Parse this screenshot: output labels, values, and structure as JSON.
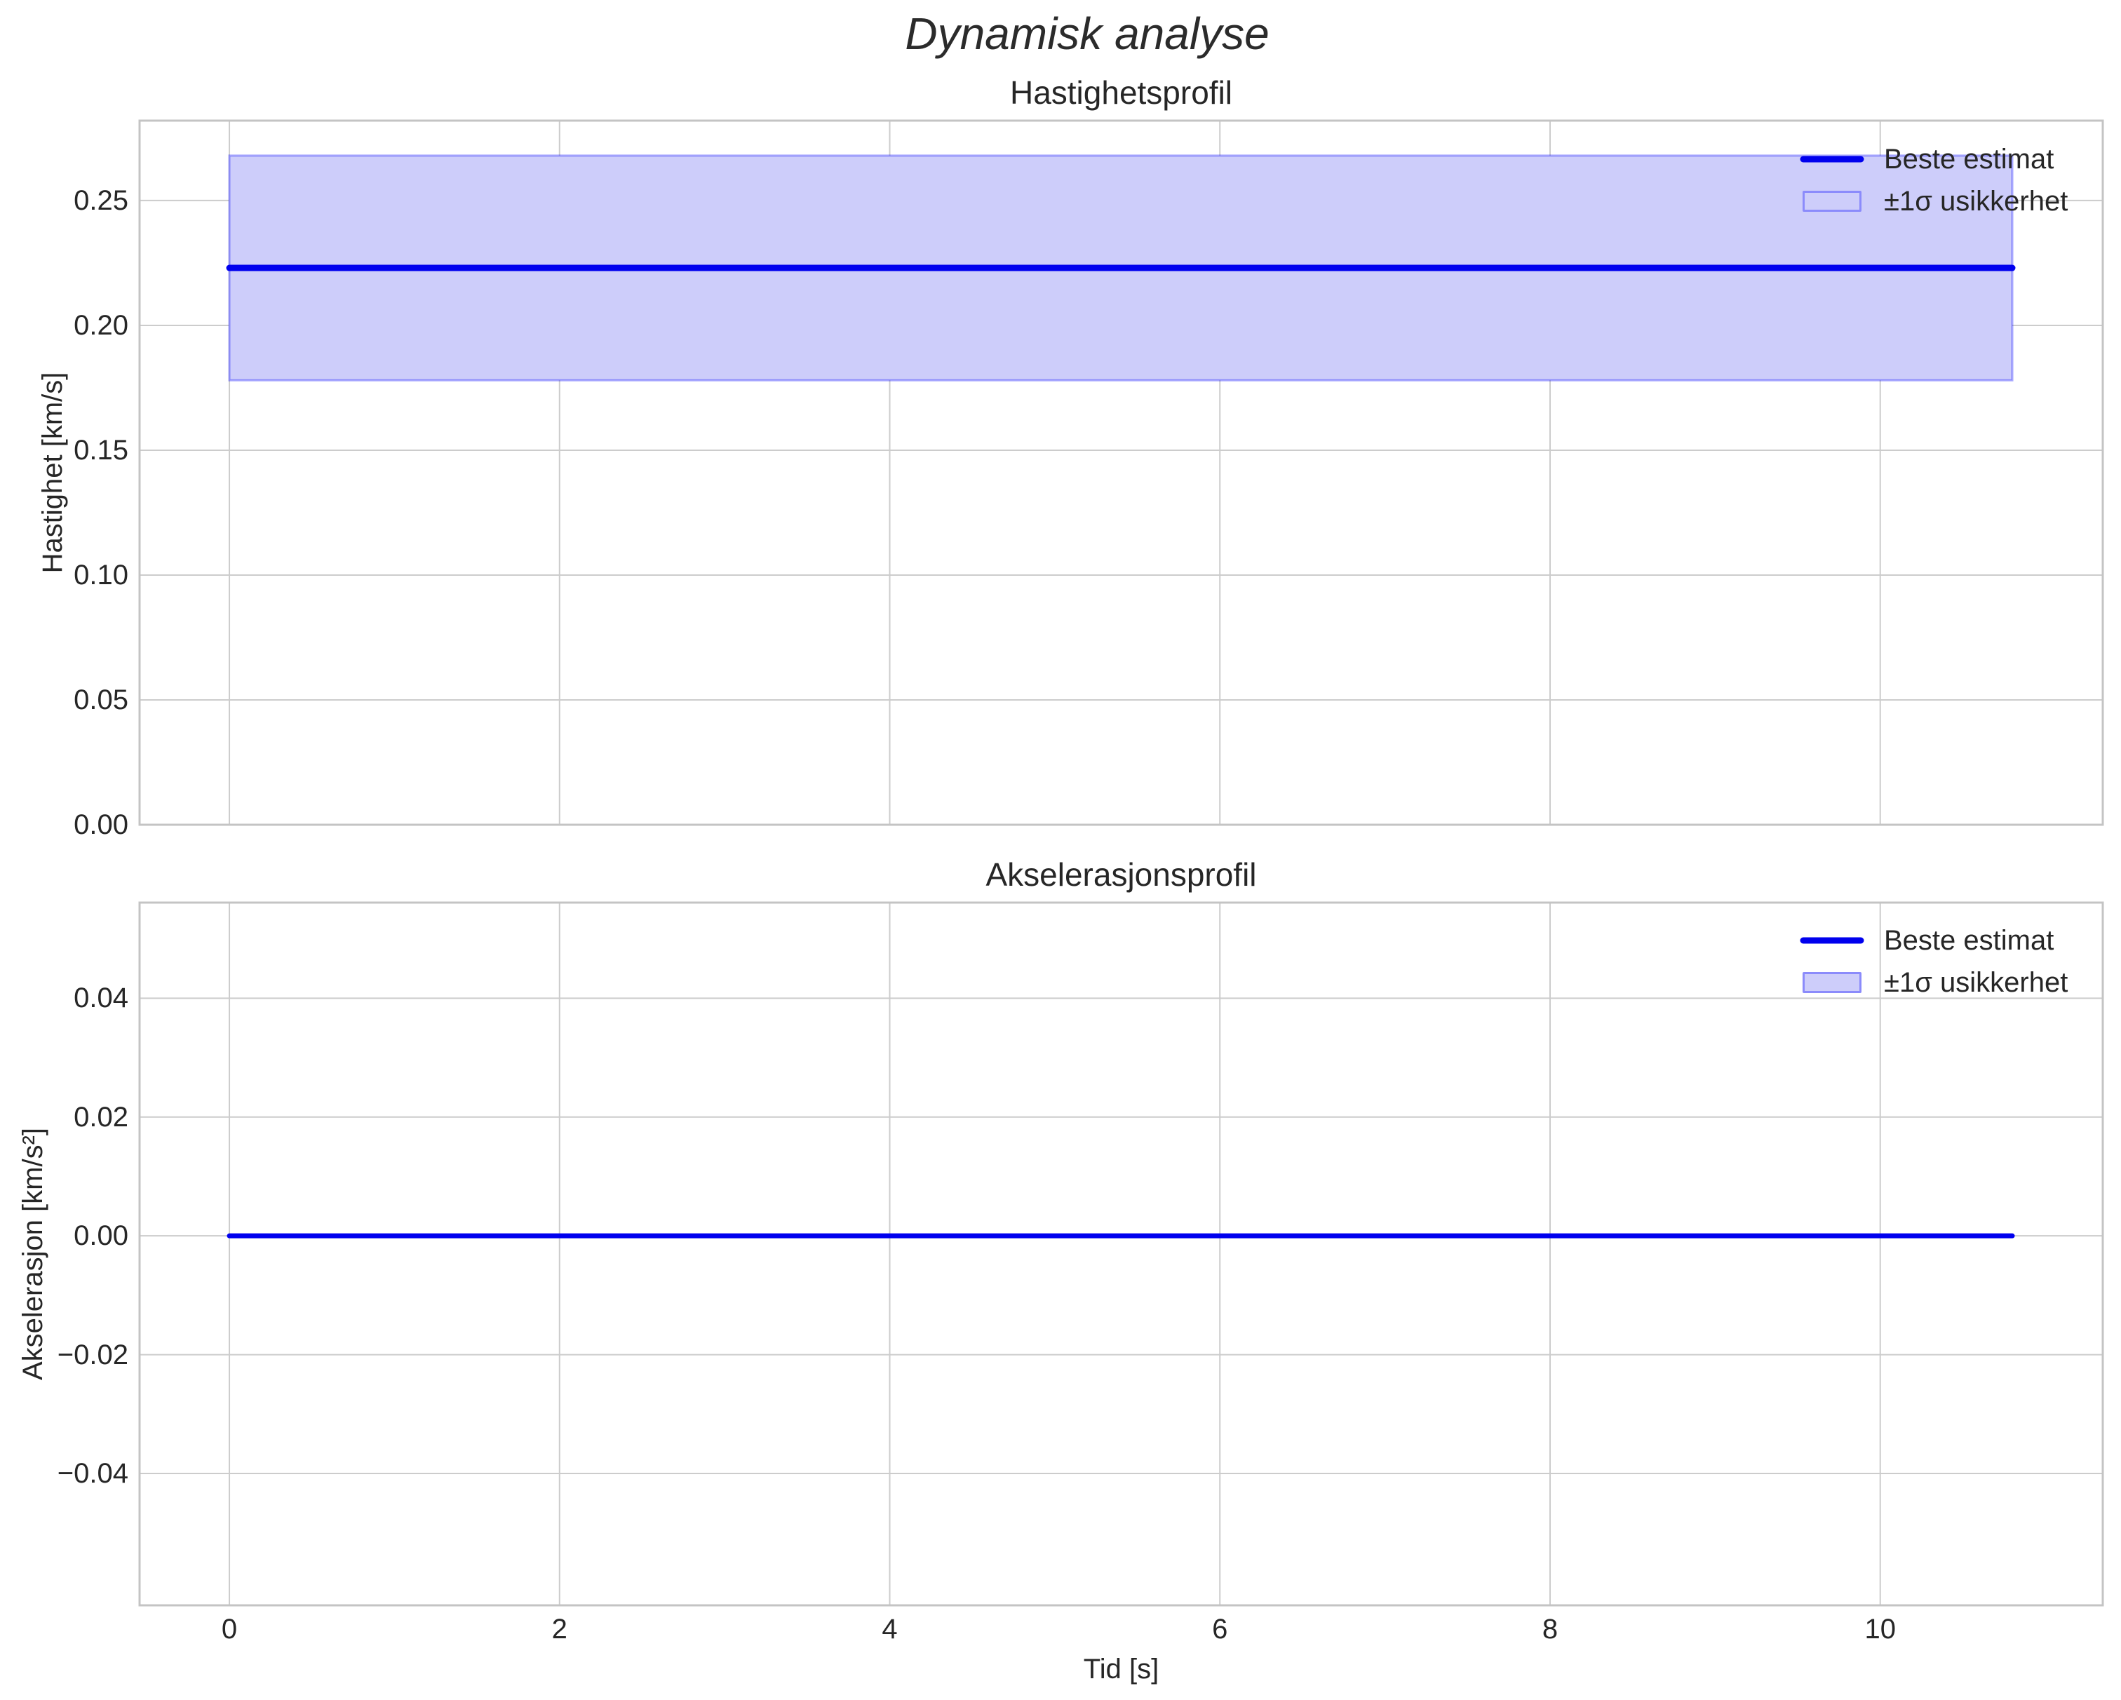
{
  "figure": {
    "title": "Dynamisk analyse"
  },
  "legend": {
    "line_label": "Beste estimat",
    "band_label": "±1σ usikkerhet"
  },
  "colors": {
    "line": "#0000ee",
    "band_fill": "#cdcdfa",
    "band_edge": "rgba(0,0,255,0.32)",
    "grid": "#cccccc",
    "spine": "#c4c4c4",
    "text": "#262626"
  },
  "chart_data": [
    {
      "type": "line",
      "title": "Hastighetsprofil",
      "ylabel": "Hastighet [km/s]",
      "series": [
        {
          "name": "Beste estimat",
          "x": [
            0,
            10.8
          ],
          "y": [
            0.223,
            0.223
          ]
        }
      ],
      "band": {
        "name": "±1σ usikkerhet",
        "x": [
          0,
          10.8
        ],
        "lower": 0.178,
        "upper": 0.268
      },
      "xtick_values": [
        0,
        2,
        4,
        6,
        8,
        10
      ],
      "xtick_labels": [
        "0",
        "2",
        "4",
        "6",
        "8",
        "10"
      ],
      "ytick_values": [
        0.0,
        0.05,
        0.1,
        0.15,
        0.2,
        0.25
      ],
      "ytick_labels": [
        "0.00",
        "0.05",
        "0.10",
        "0.15",
        "0.20",
        "0.25"
      ],
      "xlim": [
        -0.544,
        11.348
      ],
      "ylim": [
        0,
        0.282
      ],
      "grid": true,
      "legend_position": "upper right"
    },
    {
      "type": "line",
      "title": "Akselerasjonsprofil",
      "ylabel": "Akselerasjon [km/s²]",
      "xlabel": "Tid [s]",
      "series": [
        {
          "name": "Beste estimat",
          "x": [
            0,
            10.8
          ],
          "y": [
            0.0,
            0.0
          ]
        }
      ],
      "band": {
        "name": "±1σ usikkerhet",
        "x": [
          0,
          10.8
        ],
        "lower": 0.0,
        "upper": 0.0
      },
      "xtick_values": [
        0,
        2,
        4,
        6,
        8,
        10
      ],
      "xtick_labels": [
        "0",
        "2",
        "4",
        "6",
        "8",
        "10"
      ],
      "ytick_values": [
        0.04,
        0.02,
        0.0,
        -0.02,
        -0.04
      ],
      "ytick_labels": [
        "0.04",
        "0.02",
        "0.00",
        "−0.02",
        "−0.04"
      ],
      "xlim": [
        -0.544,
        11.348
      ],
      "ylim": [
        -0.0622,
        0.0561
      ],
      "grid": true,
      "legend_position": "upper right"
    }
  ]
}
